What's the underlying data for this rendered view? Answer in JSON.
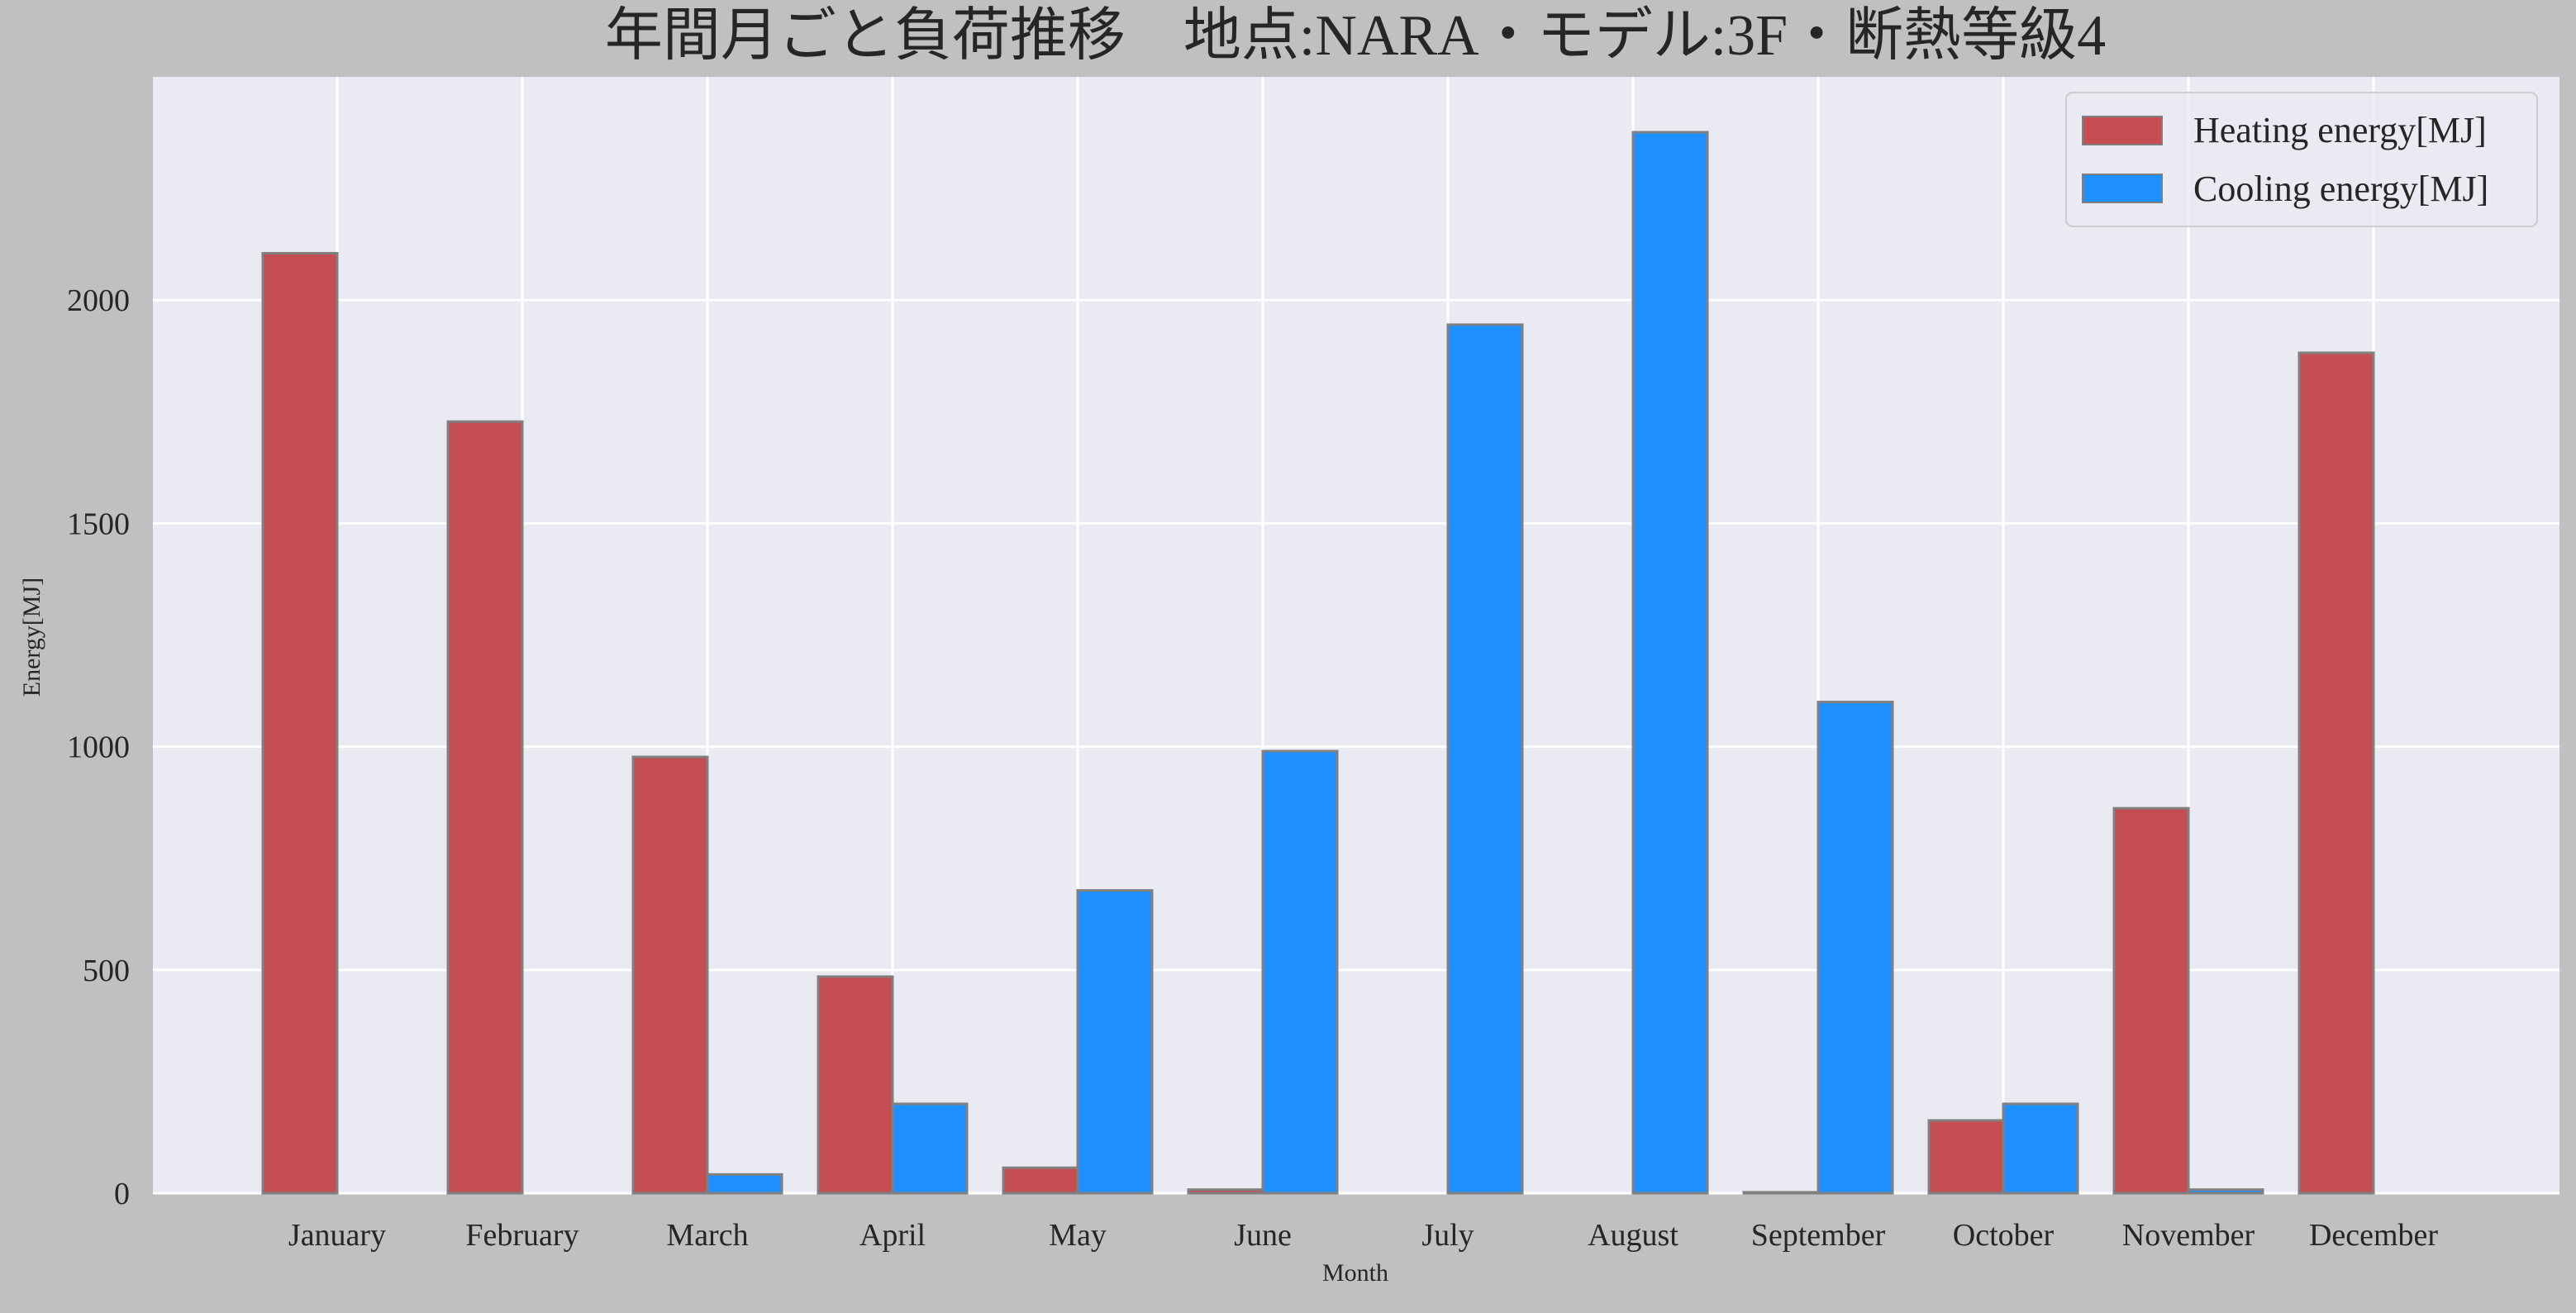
{
  "chart_data": {
    "type": "bar",
    "title": "年間月ごと負荷推移　地点:NARA・モデル:3F・断熱等級4",
    "xlabel": "Month",
    "ylabel": "Energy[MJ]",
    "ylim": [
      0,
      2500
    ],
    "yticks": [
      0,
      500,
      1000,
      1500,
      2000
    ],
    "grid": true,
    "legend_position": "top-right",
    "categories": [
      "January",
      "February",
      "March",
      "April",
      "May",
      "June",
      "July",
      "August",
      "September",
      "October",
      "November",
      "December"
    ],
    "series": [
      {
        "name": "Heating energy[MJ]",
        "color": "#c44e52",
        "values": [
          2105,
          1728,
          977,
          485,
          57,
          8,
          0,
          0,
          2,
          163,
          862,
          1882
        ]
      },
      {
        "name": "Cooling energy[MJ]",
        "color": "#1e90ff",
        "values": [
          0,
          0,
          42,
          200,
          678,
          990,
          1945,
          2376,
          1100,
          200,
          8,
          0
        ]
      }
    ],
    "colors": {
      "figure_background": "#c0c0c0",
      "plot_background": "#eaeaf2",
      "grid": "#ffffff",
      "bar_edge": "#808080"
    }
  }
}
